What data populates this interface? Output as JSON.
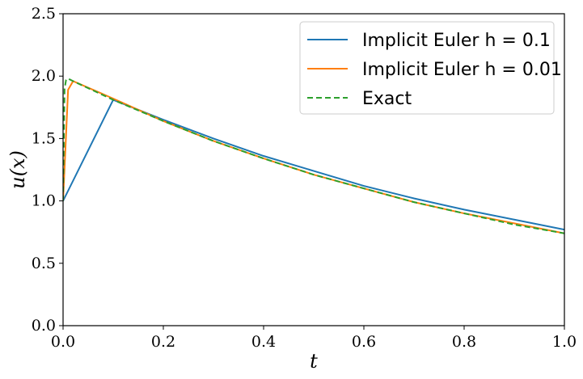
{
  "chart_data": {
    "type": "line",
    "xlabel": "t",
    "ylabel": "u(x)",
    "xlim": [
      0.0,
      1.0
    ],
    "ylim": [
      0.0,
      2.5
    ],
    "xticks": [
      "0.0",
      "0.2",
      "0.4",
      "0.6",
      "0.8",
      "1.0"
    ],
    "yticks": [
      "0.0",
      "0.5",
      "1.0",
      "1.5",
      "2.0",
      "2.5"
    ],
    "grid": false,
    "legend_position": "top-right",
    "series": [
      {
        "name": "Implicit Euler h = 0.1",
        "color": "#1f77b4",
        "dash": "solid",
        "x": [
          0.0,
          0.1,
          0.2,
          0.3,
          0.4,
          0.5,
          0.6,
          0.7,
          0.8,
          0.9,
          1.0
        ],
        "y": [
          1.0,
          1.81,
          1.65,
          1.5,
          1.36,
          1.24,
          1.12,
          1.02,
          0.93,
          0.85,
          0.77
        ]
      },
      {
        "name": "Implicit Euler h = 0.01",
        "color": "#ff7f0e",
        "dash": "solid",
        "x": [
          0.0,
          0.01,
          0.02,
          0.1,
          0.2,
          0.3,
          0.4,
          0.5,
          0.6,
          0.7,
          0.8,
          0.9,
          1.0
        ],
        "y": [
          1.0,
          1.89,
          1.96,
          1.82,
          1.64,
          1.48,
          1.34,
          1.21,
          1.1,
          0.99,
          0.9,
          0.82,
          0.74
        ]
      },
      {
        "name": "Exact",
        "color": "#2ca02c",
        "dash": "dashed",
        "x": [
          0.0,
          0.003,
          0.006,
          0.01,
          0.02,
          0.1,
          0.2,
          0.3,
          0.4,
          0.5,
          0.6,
          0.7,
          0.8,
          0.9,
          1.0
        ],
        "y": [
          1.0,
          1.9,
          1.97,
          1.98,
          1.96,
          1.81,
          1.64,
          1.48,
          1.34,
          1.21,
          1.1,
          0.99,
          0.9,
          0.81,
          0.74
        ]
      }
    ]
  }
}
